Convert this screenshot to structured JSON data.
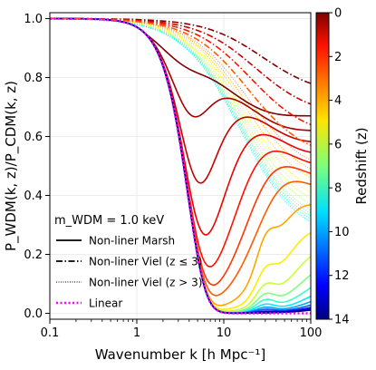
{
  "chart_data": {
    "type": "line",
    "xlabel": "Wavenumber k [h Mpc⁻¹]",
    "ylabel": "P_WDM(k, z)/P_CDM(k, z)",
    "xscale": "log",
    "xlim": [
      0.1,
      100
    ],
    "ylim": [
      -0.02,
      1.02
    ],
    "x_ticks": [
      0.1,
      1,
      10,
      100
    ],
    "x_tick_labels": [
      "0.1",
      "1",
      "10",
      "100"
    ],
    "y_ticks": [
      0.0,
      0.2,
      0.4,
      0.6,
      0.8,
      1.0
    ],
    "y_tick_labels": [
      "0.0",
      "0.2",
      "0.4",
      "0.6",
      "0.8",
      "1.0"
    ],
    "grid": true,
    "legend_placement": "lower-left",
    "legend_title": "m_WDM = 1.0 keV",
    "legend": [
      {
        "label": "Non-liner Marsh",
        "style": "solid",
        "color": "#000000"
      },
      {
        "label": "Non-liner Viel (z ≤ 3)",
        "style": "dashdot",
        "color": "#000000"
      },
      {
        "label": "Non-liner Viel (z > 3)",
        "style": "dotted",
        "color": "#000000"
      },
      {
        "label": "Linear",
        "style": "dotted",
        "color": "#ff00ff"
      }
    ],
    "colorbar": {
      "label": "Redshift (z)",
      "min": 0,
      "max": 14,
      "ticks": [
        0,
        2,
        4,
        6,
        8,
        10,
        12,
        14
      ],
      "tick_labels": [
        "0",
        "2",
        "4",
        "6",
        "8",
        "10",
        "12",
        "14"
      ],
      "reversed": true,
      "colormap": "jet"
    },
    "k_half_linear": 7.2,
    "marsh_redshifts": [
      0,
      0.5,
      1,
      1.5,
      2,
      2.5,
      3,
      4,
      5,
      6,
      7,
      8,
      9,
      10,
      11,
      12,
      13,
      14
    ],
    "marsh_high_k_values": [
      0.67,
      0.62,
      0.58,
      0.54,
      0.5,
      0.46,
      0.42,
      0.36,
      0.28,
      0.22,
      0.17,
      0.13,
      0.09,
      0.06,
      0.04,
      0.02,
      0.01,
      0.0
    ],
    "viel_low_z_redshifts": [
      0,
      1,
      2,
      3
    ],
    "viel_low_z_values_at_k100": [
      0.78,
      0.71,
      0.64,
      0.57
    ],
    "viel_high_z_redshifts": [
      3.5,
      4,
      4.5,
      5,
      5.5,
      6,
      6.5,
      7,
      7.5,
      8,
      8.5,
      9
    ],
    "viel_high_z_values_at_k100": [
      0.52,
      0.49,
      0.46,
      0.43,
      0.41,
      0.39,
      0.37,
      0.35,
      0.34,
      0.33,
      0.32,
      0.31
    ]
  }
}
